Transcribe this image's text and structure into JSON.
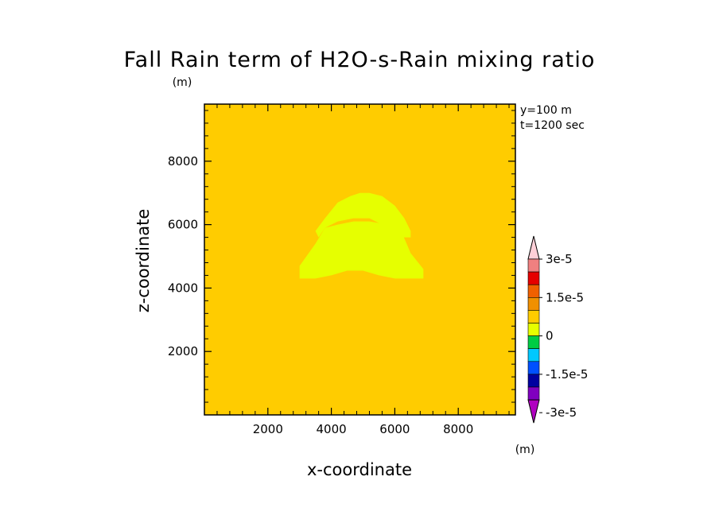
{
  "chart_data": {
    "type": "heatmap",
    "title": "Fall Rain term of H2O-s-Rain mixing ratio",
    "title_unit": "(m)",
    "xlabel": "x-coordinate",
    "ylabel": "z-coordinate",
    "xlim": [
      0,
      9800
    ],
    "ylim": [
      0,
      9800
    ],
    "xticks": [
      2000,
      4000,
      6000,
      8000
    ],
    "yticks": [
      2000,
      4000,
      6000,
      8000
    ],
    "xtick_labels": [
      "2000",
      "4000",
      "6000",
      "8000"
    ],
    "ytick_labels": [
      "2000",
      "4000",
      "6000",
      "8000"
    ],
    "info": [
      "y=100 m",
      "t=1200 sec"
    ],
    "background_color": "#ffcc00",
    "field_regions": [
      {
        "level": "0 to 5e-6",
        "color": "#e6ff00",
        "outline": [
          [
            3000,
            4300
          ],
          [
            3500,
            4300
          ],
          [
            4000,
            4400
          ],
          [
            4500,
            4550
          ],
          [
            5000,
            4550
          ],
          [
            5500,
            4400
          ],
          [
            6000,
            4300
          ],
          [
            6900,
            4300
          ],
          [
            6900,
            4600
          ],
          [
            6500,
            5100
          ],
          [
            6200,
            5800
          ],
          [
            5800,
            6000
          ],
          [
            5200,
            6100
          ],
          [
            4700,
            6100
          ],
          [
            4200,
            6000
          ],
          [
            3800,
            5900
          ],
          [
            3500,
            5400
          ],
          [
            3000,
            4700
          ]
        ]
      },
      {
        "level": "0 to 5e-6",
        "color": "#e6ff00",
        "outline": [
          [
            3500,
            5800
          ],
          [
            3800,
            6200
          ],
          [
            4200,
            6700
          ],
          [
            4600,
            6900
          ],
          [
            4900,
            7000
          ],
          [
            5200,
            7000
          ],
          [
            5600,
            6900
          ],
          [
            6000,
            6600
          ],
          [
            6300,
            6200
          ],
          [
            6500,
            5800
          ],
          [
            6500,
            5600
          ],
          [
            6200,
            5600
          ],
          [
            5800,
            5900
          ],
          [
            5200,
            6200
          ],
          [
            4700,
            6200
          ],
          [
            4200,
            6100
          ],
          [
            3800,
            5900
          ],
          [
            3600,
            5600
          ]
        ]
      }
    ],
    "colorbar": {
      "unit": "(m)",
      "labels": [
        "3e-5",
        "1.5e-5",
        "0",
        "-1.5e-5",
        "-3e-5"
      ],
      "colors": [
        "#ffd0d8",
        "#f08080",
        "#e60000",
        "#f06000",
        "#f09000",
        "#ffcc00",
        "#e6ff00",
        "#00cc44",
        "#00c8ff",
        "#0050ff",
        "#0000a0",
        "#8000c0",
        "#b000c0"
      ]
    }
  }
}
